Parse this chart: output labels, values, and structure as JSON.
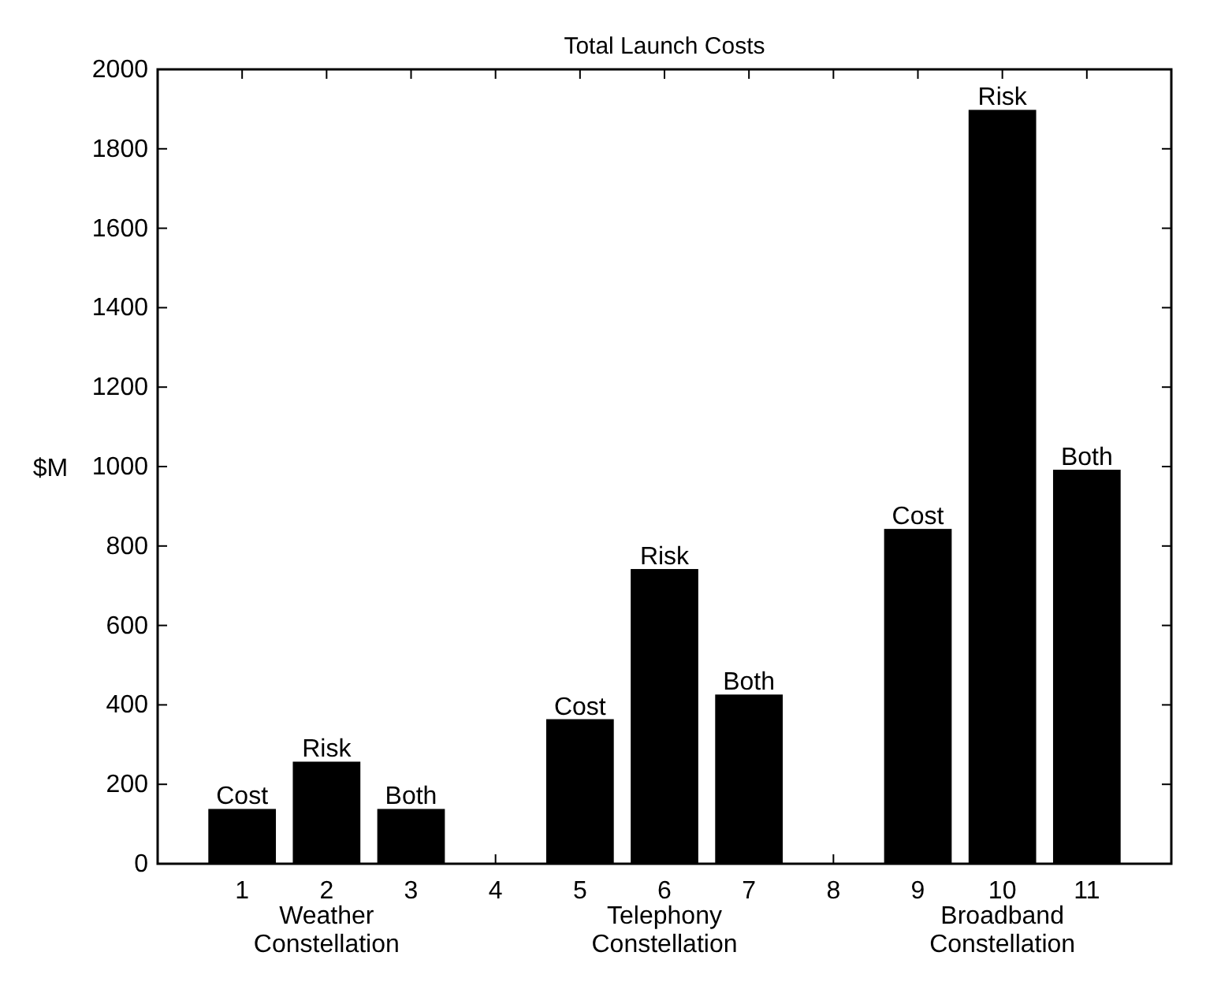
{
  "chart_data": {
    "type": "bar",
    "title": "Total Launch Costs",
    "ylabel": "$M",
    "x": [
      1,
      2,
      3,
      5,
      6,
      7,
      9,
      10,
      11
    ],
    "values": [
      138,
      257,
      138,
      364,
      742,
      426,
      843,
      1898,
      992
    ],
    "value_labels": [
      "Cost",
      "Risk",
      "Both",
      "Cost",
      "Risk",
      "Both",
      "Cost",
      "Risk",
      "Both"
    ],
    "color": "#000000",
    "xlim": [
      0,
      12
    ],
    "xticks": [
      1,
      2,
      3,
      4,
      5,
      6,
      7,
      8,
      9,
      10,
      11
    ],
    "ylim": [
      0,
      2000
    ],
    "yticks": [
      0,
      200,
      400,
      600,
      800,
      1000,
      1200,
      1400,
      1600,
      1800,
      2000
    ],
    "annotations": [
      "Weather\nConstellation",
      "Telephony\nConstellation",
      "Broadband\nConstellation"
    ]
  }
}
